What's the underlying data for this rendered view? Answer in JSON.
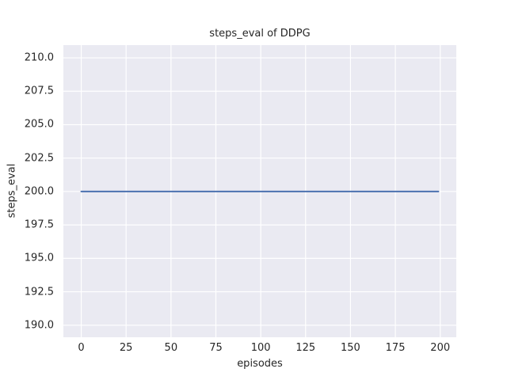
{
  "chart_data": {
    "type": "line",
    "title": "steps_eval of DDPG",
    "xlabel": "episodes",
    "ylabel": "steps_eval",
    "xlim": [
      -9.95,
      208.95
    ],
    "ylim": [
      189.1,
      210.95
    ],
    "xticks": [
      0,
      25,
      50,
      75,
      100,
      125,
      150,
      175,
      200
    ],
    "xtick_labels": [
      "0",
      "25",
      "50",
      "75",
      "100",
      "125",
      "150",
      "175",
      "200"
    ],
    "yticks": [
      190.0,
      192.5,
      195.0,
      197.5,
      200.0,
      202.5,
      205.0,
      207.5,
      210.0
    ],
    "ytick_labels": [
      "190.0",
      "192.5",
      "195.0",
      "197.5",
      "200.0",
      "202.5",
      "205.0",
      "207.5",
      "210.0"
    ],
    "grid": true,
    "legend_position": "none",
    "series": [
      {
        "name": "steps_eval",
        "color": "#4C72B0",
        "x": [
          0,
          199
        ],
        "y": [
          200.0,
          200.0
        ]
      }
    ],
    "colors": {
      "plot_background": "#EAEAF2",
      "gridline": "#FFFFFF",
      "text": "#262626",
      "figure_background": "#FFFFFF"
    }
  }
}
